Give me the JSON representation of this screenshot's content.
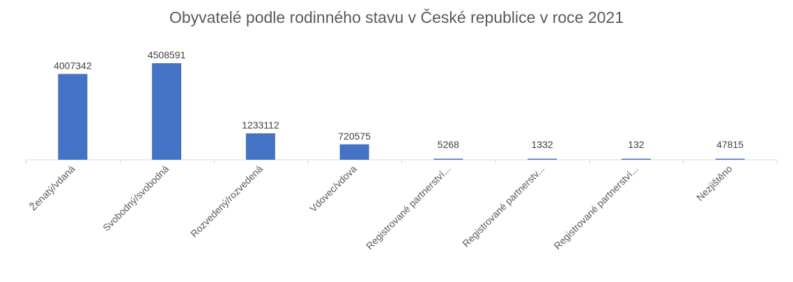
{
  "chart_data": {
    "type": "bar",
    "title": "Obyvatelé podle rodinného stavu v České republice v roce 2021",
    "xlabel": "",
    "ylabel": "",
    "categories": [
      "Ženatý/vdaná",
      "Svobodný/svobodná",
      "Rozvedený/rozvedená",
      "Vdovec/vdova",
      "Registrované partnerství...",
      "Registrované partnerstv...",
      "Registrované partnerství...",
      "Nezjištěno"
    ],
    "values": [
      4007342,
      4508591,
      1233112,
      720575,
      5268,
      1332,
      132,
      47815
    ],
    "data_labels": [
      "4007342",
      "4508591",
      "1233112",
      "720575",
      "5268",
      "1332",
      "132",
      "47815"
    ],
    "ylim": [
      0,
      4508591
    ],
    "grid": false,
    "legend": "none",
    "bar_color": "#4472C4",
    "text_color": "#595959",
    "axis_color": "#D9D9D9"
  }
}
